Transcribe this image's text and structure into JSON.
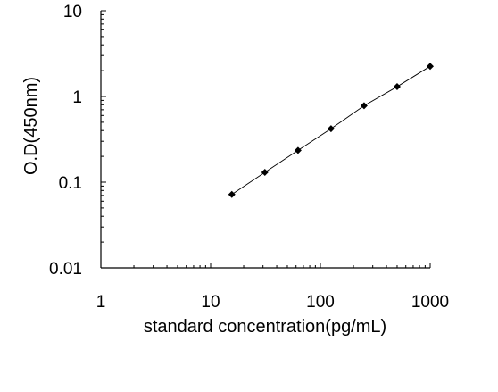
{
  "chart_data": {
    "type": "scatter",
    "title": "",
    "xlabel": "standard concentration(pg/mL)",
    "ylabel": "O.D(450nm)",
    "x_scale": "log",
    "y_scale": "log",
    "xlim": [
      1,
      1000
    ],
    "ylim": [
      0.01,
      10
    ],
    "x_ticks": [
      {
        "value": 1,
        "label": "1"
      },
      {
        "value": 10,
        "label": "10"
      },
      {
        "value": 100,
        "label": "100"
      },
      {
        "value": 1000,
        "label": "1000"
      }
    ],
    "y_ticks": [
      {
        "value": 0.01,
        "label": "0.01"
      },
      {
        "value": 0.1,
        "label": "0.1"
      },
      {
        "value": 1,
        "label": "1"
      },
      {
        "value": 10,
        "label": "10"
      }
    ],
    "grid": false,
    "legend": "none",
    "series": [
      {
        "x": [
          15.6,
          31.2,
          62.5,
          125,
          250,
          500,
          1000
        ],
        "y": [
          0.072,
          0.13,
          0.235,
          0.42,
          0.78,
          1.3,
          2.25
        ],
        "marker": "diamond",
        "fit_line": true,
        "color": "#000000"
      }
    ]
  }
}
